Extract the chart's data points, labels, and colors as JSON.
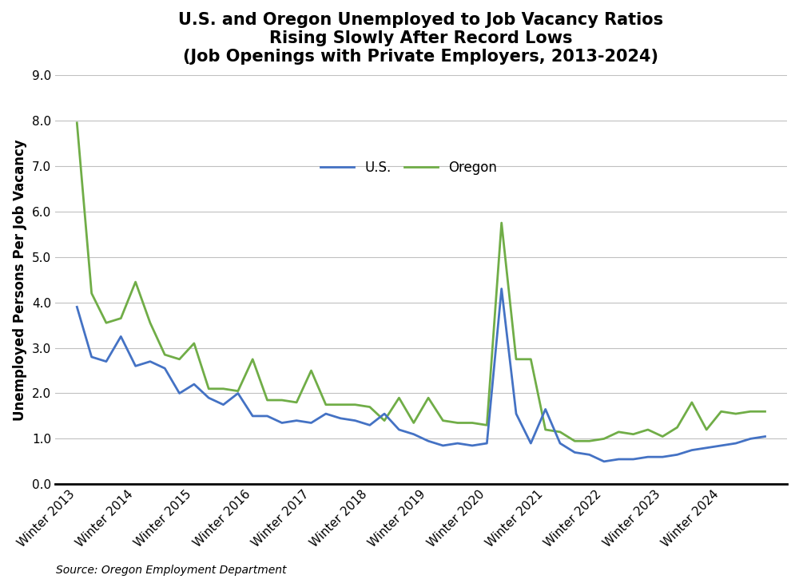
{
  "title": "U.S. and Oregon Unemployed to Job Vacancy Ratios\nRising Slowly After Record Lows\n(Job Openings with Private Employers, 2013-2024)",
  "ylabel": "Unemployed Persons Per Job Vacancy",
  "source": "Source: Oregon Employment Department",
  "ylim_min": 0.0,
  "ylim_max": 9.0,
  "yticks": [
    0.0,
    1.0,
    2.0,
    3.0,
    4.0,
    5.0,
    6.0,
    7.0,
    8.0,
    9.0
  ],
  "us_color": "#4472C4",
  "oregon_color": "#70AD47",
  "line_width": 2.0,
  "x_labels": [
    "Winter 2013",
    "Winter 2014",
    "Winter 2015",
    "Winter 2016",
    "Winter 2017",
    "Winter 2018",
    "Winter 2019",
    "Winter 2020",
    "Winter 2021",
    "Winter 2022",
    "Winter 2023",
    "Winter 2024"
  ],
  "x_tick_positions": [
    0,
    4,
    8,
    12,
    16,
    20,
    24,
    28,
    32,
    36,
    40,
    44
  ],
  "us_y": [
    3.9,
    2.8,
    2.7,
    3.25,
    2.6,
    2.7,
    2.55,
    2.0,
    2.2,
    1.9,
    1.75,
    2.0,
    1.5,
    1.5,
    1.35,
    1.4,
    1.35,
    1.55,
    1.45,
    1.4,
    1.3,
    1.55,
    1.2,
    1.1,
    0.95,
    0.85,
    0.9,
    0.85,
    0.9,
    4.3,
    1.55,
    0.9,
    1.65,
    0.9,
    0.7,
    0.65,
    0.5,
    0.55,
    0.55,
    0.6,
    0.6,
    0.65,
    0.75,
    0.8,
    0.85,
    0.9,
    1.0,
    1.05
  ],
  "oregon_y": [
    7.95,
    4.2,
    3.55,
    3.65,
    4.45,
    3.55,
    2.85,
    2.75,
    3.1,
    2.1,
    2.1,
    2.05,
    2.75,
    1.85,
    1.85,
    1.8,
    2.5,
    1.75,
    1.75,
    1.75,
    1.7,
    1.4,
    1.9,
    1.35,
    1.9,
    1.4,
    1.35,
    1.35,
    1.3,
    5.75,
    2.75,
    2.75,
    1.2,
    1.15,
    0.95,
    0.95,
    1.0,
    1.15,
    1.1,
    1.2,
    1.05,
    1.25,
    1.8,
    1.2,
    1.6,
    1.55,
    1.6,
    1.6
  ],
  "title_fontsize": 15,
  "label_fontsize": 12,
  "tick_fontsize": 11,
  "legend_fontsize": 12,
  "source_fontsize": 10
}
